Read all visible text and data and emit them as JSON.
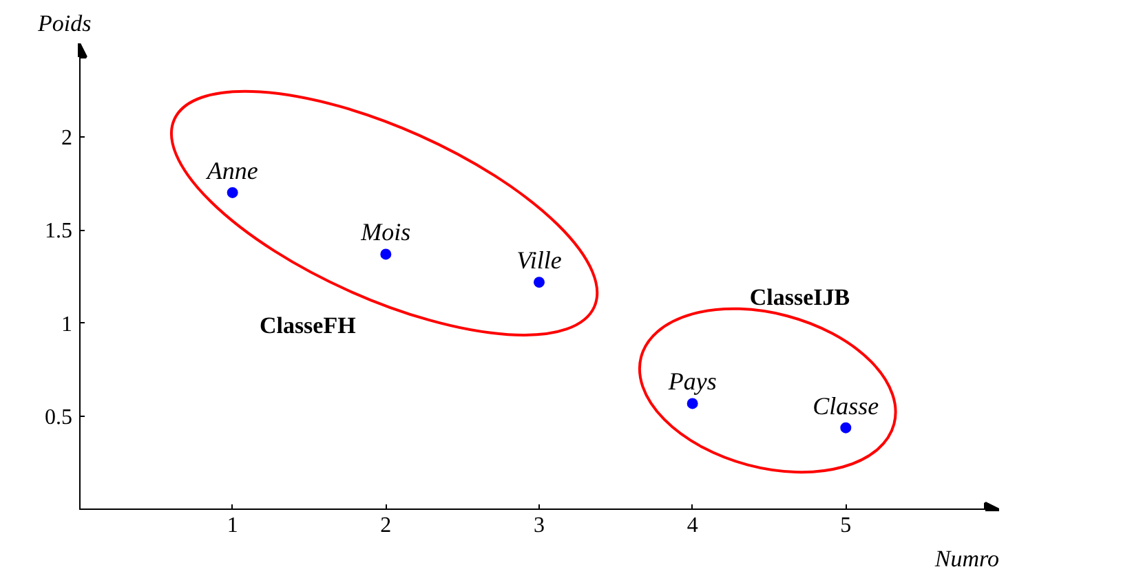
{
  "chart_data": {
    "type": "scatter",
    "xlabel": "Numro",
    "ylabel": "Poids",
    "xlim": [
      0,
      6
    ],
    "ylim": [
      0,
      2.5
    ],
    "xticks": [
      1,
      2,
      3,
      4,
      5
    ],
    "yticks": [
      0.5,
      1,
      1.5,
      2
    ],
    "grid": false,
    "marker": "circle",
    "series": [
      {
        "color": "#0000ff",
        "x": [
          1,
          2,
          3,
          4,
          5
        ],
        "values": [
          1.7,
          1.37,
          1.22,
          0.57,
          0.44
        ],
        "value_labels": [
          "Anne",
          "Mois",
          "Ville",
          "Pays",
          "Classe"
        ]
      }
    ],
    "annotations": [
      "ClasseFH",
      "ClasseIJB"
    ]
  }
}
